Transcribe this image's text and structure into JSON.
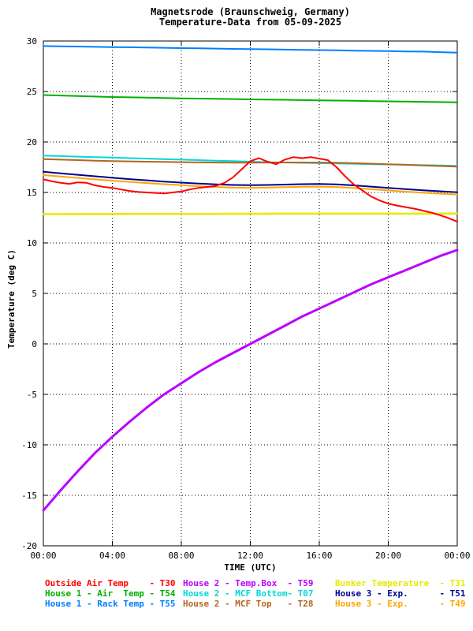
{
  "title": {
    "line1": "Magnetsrode (Braunschweig, Germany)",
    "line2": "Temperature-Data from 05-09-2025"
  },
  "axes": {
    "y_label": "Temperature (deg C)",
    "x_label": "TIME (UTC)"
  },
  "chart_data": {
    "type": "line",
    "title": "Magnetsrode (Braunschweig, Germany)",
    "subtitle": "Temperature-Data from 05-09-2025",
    "xlabel": "TIME (UTC)",
    "ylabel": "Temperature (deg C)",
    "xlim": [
      0,
      24
    ],
    "ylim": [
      -20,
      30
    ],
    "grid": true,
    "legend_position": "bottom",
    "x_ticks": [
      {
        "h": 0,
        "label": "00:00"
      },
      {
        "h": 4,
        "label": "04:00"
      },
      {
        "h": 8,
        "label": "08:00"
      },
      {
        "h": 12,
        "label": "12:00"
      },
      {
        "h": 16,
        "label": "16:00"
      },
      {
        "h": 20,
        "label": "20:00"
      },
      {
        "h": 24,
        "label": "00:00"
      }
    ],
    "y_ticks": [
      30,
      25,
      20,
      15,
      10,
      5,
      0,
      -5,
      -10,
      -15,
      -20
    ],
    "series": [
      {
        "name": "House 1 - Rack Temp",
        "code": "T55",
        "color": "#0080ff",
        "width": 2,
        "x": [
          0,
          1,
          2,
          3,
          4,
          5,
          6,
          7,
          8,
          9,
          10,
          11,
          12,
          13,
          14,
          15,
          16,
          17,
          18,
          19,
          20,
          21,
          22,
          23,
          24
        ],
        "y": [
          29.5,
          29.48,
          29.45,
          29.42,
          29.4,
          29.38,
          29.35,
          29.33,
          29.3,
          29.28,
          29.25,
          29.22,
          29.2,
          29.18,
          29.15,
          29.12,
          29.1,
          29.08,
          29.05,
          29.02,
          29.0,
          28.97,
          28.95,
          28.9,
          28.85
        ]
      },
      {
        "name": "House 1 - Air Temp",
        "code": "T54",
        "color": "#00b000",
        "width": 2,
        "x": [
          0,
          1,
          2,
          3,
          4,
          5,
          6,
          7,
          8,
          9,
          10,
          11,
          12,
          13,
          14,
          15,
          16,
          17,
          18,
          19,
          20,
          21,
          22,
          23,
          24
        ],
        "y": [
          24.65,
          24.6,
          24.55,
          24.5,
          24.45,
          24.42,
          24.4,
          24.35,
          24.32,
          24.3,
          24.27,
          24.25,
          24.22,
          24.2,
          24.18,
          24.15,
          24.12,
          24.1,
          24.08,
          24.05,
          24.02,
          24.0,
          23.98,
          23.95,
          23.92
        ]
      },
      {
        "name": "House 2 - MCF Bottom",
        "code": "T07",
        "color": "#00d8d8",
        "width": 2,
        "x": [
          0,
          1,
          2,
          3,
          4,
          5,
          6,
          7,
          8,
          9,
          10,
          11,
          12,
          13,
          14,
          15,
          16,
          17,
          18,
          19,
          20,
          21,
          22,
          23,
          24
        ],
        "y": [
          18.65,
          18.6,
          18.55,
          18.5,
          18.45,
          18.4,
          18.35,
          18.3,
          18.25,
          18.2,
          18.15,
          18.1,
          18.05,
          18.0,
          17.97,
          17.94,
          17.9,
          17.87,
          17.84,
          17.8,
          17.77,
          17.74,
          17.7,
          17.67,
          17.64
        ]
      },
      {
        "name": "House 2 - MCF Top",
        "code": "T28",
        "color": "#b5651d",
        "width": 2,
        "x": [
          0,
          1,
          2,
          3,
          4,
          5,
          6,
          7,
          8,
          9,
          10,
          11,
          12,
          13,
          14,
          15,
          16,
          17,
          18,
          19,
          20,
          21,
          22,
          23,
          24
        ],
        "y": [
          18.3,
          18.25,
          18.2,
          18.15,
          18.1,
          18.08,
          18.05,
          18.02,
          18.0,
          17.98,
          17.96,
          17.95,
          17.95,
          17.96,
          17.97,
          17.97,
          17.96,
          17.94,
          17.9,
          17.85,
          17.8,
          17.74,
          17.68,
          17.62,
          17.56
        ]
      },
      {
        "name": "House 3 - Exp.",
        "code": "T51",
        "color": "#000090",
        "width": 2,
        "x": [
          0,
          1,
          2,
          3,
          4,
          5,
          6,
          7,
          8,
          9,
          10,
          11,
          12,
          13,
          14,
          15,
          16,
          17,
          18,
          19,
          20,
          21,
          22,
          23,
          24
        ],
        "y": [
          17.05,
          16.9,
          16.75,
          16.6,
          16.45,
          16.32,
          16.2,
          16.08,
          15.98,
          15.88,
          15.8,
          15.74,
          15.72,
          15.74,
          15.78,
          15.82,
          15.84,
          15.8,
          15.7,
          15.58,
          15.45,
          15.33,
          15.22,
          15.12,
          15.02
        ]
      },
      {
        "name": "House 3 - Exp.",
        "code": "T49",
        "color": "#ffa500",
        "width": 2,
        "x": [
          0,
          1,
          2,
          3,
          4,
          5,
          6,
          7,
          8,
          9,
          10,
          11,
          12,
          13,
          14,
          15,
          16,
          17,
          18,
          19,
          20,
          21,
          22,
          23,
          24
        ],
        "y": [
          16.72,
          16.58,
          16.44,
          16.3,
          16.17,
          16.05,
          15.93,
          15.82,
          15.72,
          15.62,
          15.54,
          15.48,
          15.46,
          15.48,
          15.52,
          15.56,
          15.58,
          15.54,
          15.44,
          15.32,
          15.2,
          15.08,
          14.98,
          14.88,
          14.8
        ]
      },
      {
        "name": "Bunker Temperature",
        "code": "T31",
        "color": "#e8e800",
        "width": 2.5,
        "x": [
          0,
          1,
          2,
          3,
          4,
          5,
          6,
          7,
          8,
          9,
          10,
          11,
          12,
          13,
          14,
          15,
          16,
          17,
          18,
          19,
          20,
          21,
          22,
          23,
          24
        ],
        "y": [
          12.85,
          12.85,
          12.86,
          12.86,
          12.86,
          12.87,
          12.87,
          12.87,
          12.88,
          12.88,
          12.88,
          12.89,
          12.89,
          12.9,
          12.9,
          12.9,
          12.9,
          12.9,
          12.9,
          12.9,
          12.9,
          12.9,
          12.9,
          12.9,
          12.92
        ]
      },
      {
        "name": "House 2 - Temp.Box",
        "code": "T59",
        "color": "#bb00ff",
        "width": 3,
        "x": [
          0,
          1,
          2,
          3,
          4,
          5,
          6,
          7,
          8,
          9,
          10,
          11,
          12,
          13,
          14,
          15,
          16,
          17,
          18,
          19,
          20,
          21,
          22,
          23,
          24
        ],
        "y": [
          -16.5,
          -14.5,
          -12.6,
          -10.8,
          -9.2,
          -7.7,
          -6.3,
          -5.0,
          -3.9,
          -2.8,
          -1.8,
          -0.9,
          0.0,
          0.9,
          1.8,
          2.7,
          3.5,
          4.3,
          5.1,
          5.9,
          6.6,
          7.3,
          8.0,
          8.7,
          9.3
        ]
      },
      {
        "name": "Outside Air Temp",
        "code": "T30",
        "color": "#ff0000",
        "width": 2,
        "x": [
          0,
          0.5,
          1,
          1.5,
          2,
          2.5,
          3,
          3.5,
          4,
          4.5,
          5,
          5.5,
          6,
          6.5,
          7,
          7.5,
          8,
          8.5,
          9,
          9.5,
          10,
          10.5,
          11,
          11.5,
          12,
          12.5,
          13,
          13.5,
          14,
          14.5,
          15,
          15.5,
          16,
          16.5,
          17,
          17.5,
          18,
          18.5,
          19,
          19.5,
          20,
          20.5,
          21,
          21.5,
          22,
          22.5,
          23,
          23.5,
          24
        ],
        "y": [
          16.3,
          16.1,
          15.95,
          15.85,
          16.0,
          15.95,
          15.7,
          15.55,
          15.45,
          15.3,
          15.15,
          15.05,
          15.0,
          14.95,
          14.9,
          15.0,
          15.1,
          15.3,
          15.45,
          15.55,
          15.65,
          15.95,
          16.5,
          17.3,
          18.1,
          18.4,
          18.05,
          17.8,
          18.25,
          18.5,
          18.4,
          18.5,
          18.35,
          18.2,
          17.5,
          16.6,
          15.8,
          15.2,
          14.6,
          14.2,
          13.9,
          13.7,
          13.55,
          13.4,
          13.2,
          13.0,
          12.75,
          12.45,
          12.1
        ]
      }
    ]
  },
  "legend": {
    "items": [
      {
        "label": "Outside Air Temp",
        "code": "T30",
        "color": "#ff0000"
      },
      {
        "label": "House 2 - Temp.Box",
        "code": "T59",
        "color": "#bb00ff"
      },
      {
        "label": "Bunker Temperature",
        "code": "T31",
        "color": "#e8e800"
      },
      {
        "label": "House 1 - Air  Temp",
        "code": "T54",
        "color": "#00b000"
      },
      {
        "label": "House 2 - MCF Bottom",
        "code": "T07",
        "color": "#00d8d8"
      },
      {
        "label": "House 3 - Exp.",
        "code": "T51",
        "color": "#000090"
      },
      {
        "label": "House 1 - Rack Temp",
        "code": "T55",
        "color": "#0080ff"
      },
      {
        "label": "House 2 - MCF Top",
        "code": "T28",
        "color": "#b5651d"
      },
      {
        "label": "House 3 - Exp.",
        "code": "T49",
        "color": "#ffa500"
      }
    ]
  }
}
